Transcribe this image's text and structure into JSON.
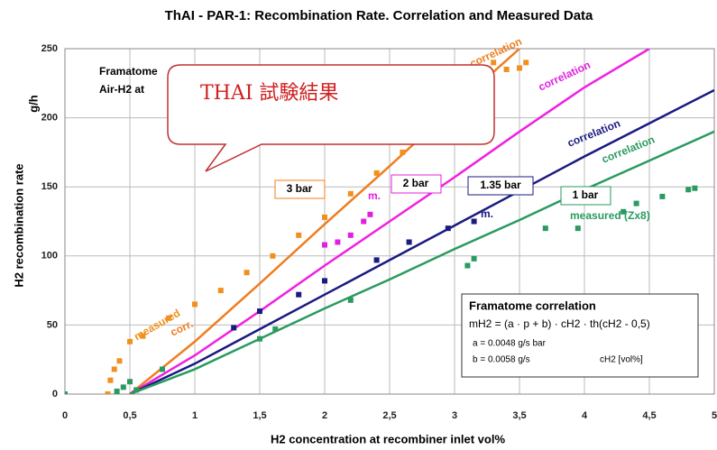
{
  "chart_data": {
    "type": "line",
    "title": "ThAI - PAR-1: Recombination Rate. Correlation and Measured Data",
    "x_label": "H2 concentration at recombiner inlet     vol%",
    "y_label": "H2 recombination rate",
    "y_unit": "g/h",
    "xlim": [
      0,
      5
    ],
    "ylim": [
      0,
      250
    ],
    "xticks": [
      0,
      {
        "value": 0.5,
        "label": "0,5"
      },
      1,
      {
        "value": 1.5,
        "label": "1,5"
      },
      2,
      {
        "value": 2.5,
        "label": "2,5"
      },
      3,
      {
        "value": 3.5,
        "label": "3,5"
      },
      4,
      {
        "value": 4.5,
        "label": "4,5"
      },
      5
    ],
    "yticks": [
      0,
      50,
      100,
      150,
      200,
      250
    ],
    "grid": true,
    "series": [
      {
        "name": "3 bar",
        "color": "#f07d1e",
        "mode": "line",
        "x": [
          0.5,
          1,
          1.5,
          2,
          2.5,
          3,
          3.5
        ],
        "values": [
          0,
          38,
          80,
          123,
          165,
          208,
          250
        ]
      },
      {
        "name": "2 bar",
        "color": "#f020e0",
        "mode": "line",
        "x": [
          0.5,
          1,
          1.5,
          2,
          2.5,
          3,
          3.5,
          4,
          4.5
        ],
        "values": [
          0,
          28,
          60,
          93,
          125,
          157,
          190,
          222,
          250
        ]
      },
      {
        "name": "1.35 bar",
        "color": "#1a1a80",
        "mode": "line",
        "x": [
          0.5,
          1,
          1.5,
          2,
          2.5,
          3,
          3.5,
          4,
          4.5,
          5
        ],
        "values": [
          0,
          22,
          47,
          72,
          97,
          122,
          147,
          172,
          196,
          220
        ]
      },
      {
        "name": "1 bar",
        "color": "#2a9a60",
        "mode": "line",
        "x": [
          0.5,
          1,
          1.5,
          2,
          2.5,
          3,
          3.5,
          4,
          4.5,
          5
        ],
        "values": [
          0,
          18,
          40,
          62,
          83,
          105,
          126,
          148,
          169,
          190
        ]
      },
      {
        "name": "measured",
        "color": "#f0901e",
        "mode": "markers",
        "x": [
          0.33,
          0.35,
          0.38,
          0.42,
          0.5,
          0.6,
          0.8,
          1,
          1.2,
          1.4,
          1.6,
          1.8,
          2,
          2.2,
          2.4,
          2.6,
          2.8,
          3,
          3.2,
          3.3,
          3.4,
          3.5,
          3.55
        ],
        "values": [
          0,
          10,
          18,
          24,
          38,
          42,
          55,
          65,
          75,
          88,
          100,
          115,
          128,
          145,
          160,
          175,
          190,
          205,
          225,
          240,
          235,
          236,
          240
        ]
      },
      {
        "name": "m.",
        "color": "#e020e0",
        "mode": "markers",
        "x": [
          2,
          2.1,
          2.2,
          2.3,
          2.35
        ],
        "values": [
          108,
          110,
          115,
          125,
          130
        ]
      },
      {
        "name": "m.",
        "color": "#1a1a80",
        "mode": "markers",
        "x": [
          1.3,
          1.5,
          1.8,
          2,
          2.4,
          2.65,
          2.95,
          3.15
        ],
        "values": [
          48,
          60,
          72,
          82,
          97,
          110,
          120,
          125
        ]
      },
      {
        "name": "measured (Zx8)",
        "color": "#2a9a60",
        "mode": "markers",
        "x": [
          0,
          0.4,
          0.45,
          0.5,
          0.55,
          0.75,
          1.5,
          1.62,
          2.2,
          3.1,
          3.15,
          3.7,
          3.95,
          4.3,
          4.4,
          4.6,
          4.8,
          4.85
        ],
        "values": [
          0,
          2,
          5,
          9,
          3,
          18,
          40,
          47,
          68,
          93,
          98,
          120,
          120,
          132,
          138,
          143,
          148,
          149
        ]
      }
    ],
    "annotations": [
      "correlation",
      "correlation",
      "correlation",
      "correlation",
      "corr.",
      "Framatome",
      "Air-H2 at"
    ],
    "callout": "THAI 試験結果",
    "formula_box": {
      "title": "Framatome correlation",
      "formula": "mH2 = (a · p + b) · cH2 · th(cH2 - 0,5)",
      "a": "a = 0.0048 g/s bar",
      "b": "b = 0.0058 g/s",
      "c": "cH2 [vol%]"
    }
  }
}
